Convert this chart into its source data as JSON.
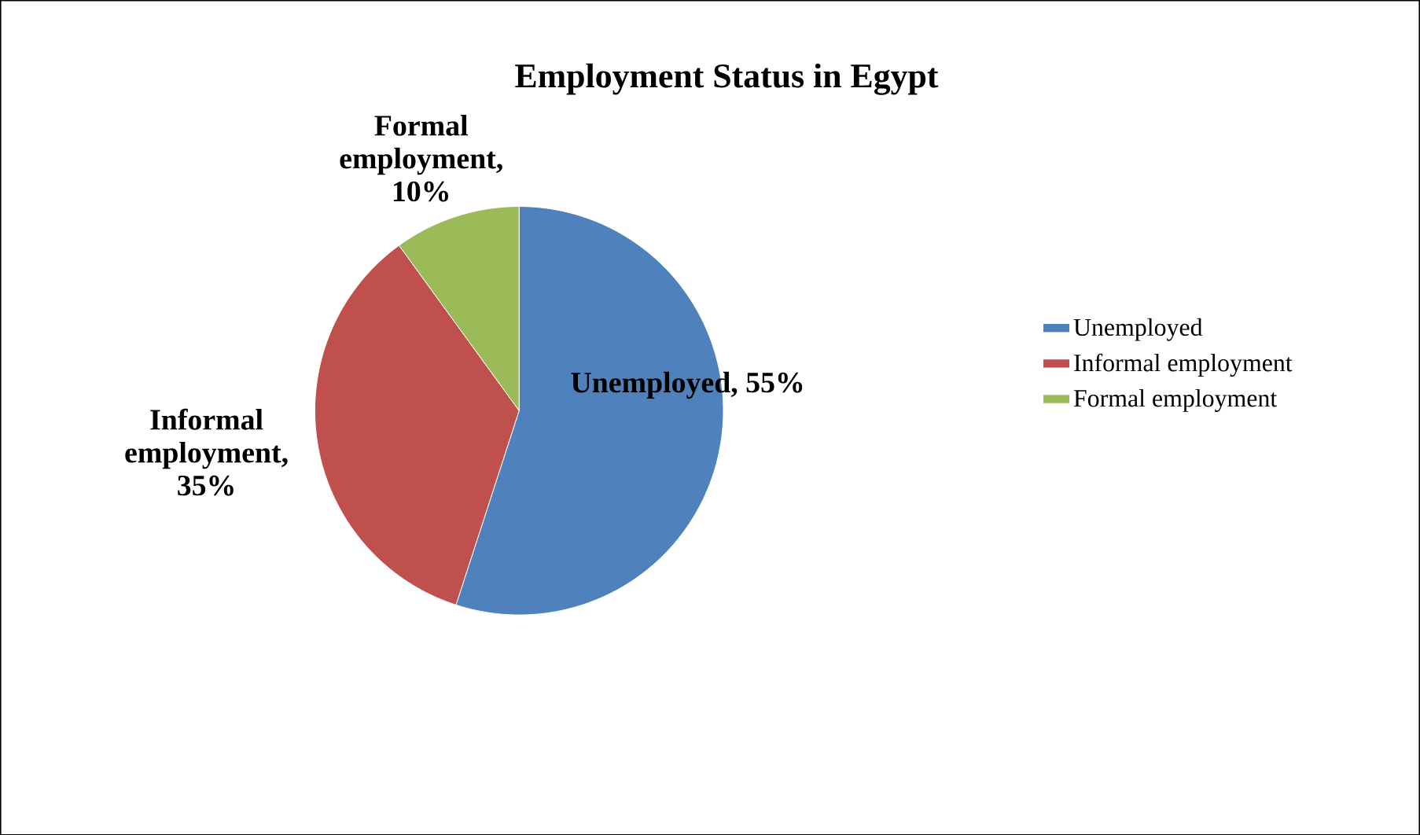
{
  "chart_data": {
    "type": "pie",
    "title": "Employment Status in Egypt",
    "categories": [
      "Unemployed",
      "Informal employment",
      "Formal employment"
    ],
    "values": [
      55,
      35,
      10
    ],
    "colors": [
      "#4f81bd",
      "#c0504d",
      "#9bbb59"
    ],
    "value_labels": [
      "Unemployed, 55%",
      "Informal employment, 35%",
      "Formal employment, 10%"
    ],
    "legend": "right"
  }
}
